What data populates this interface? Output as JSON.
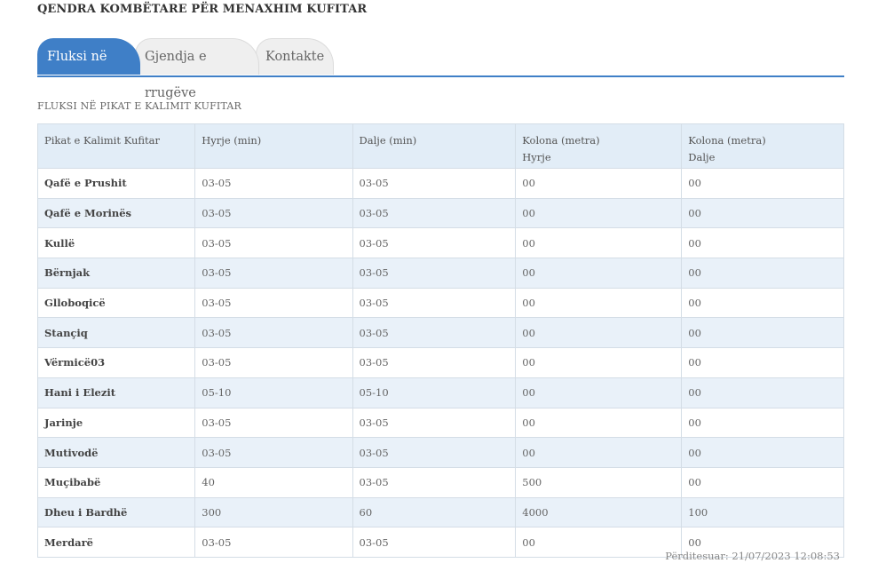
{
  "site_title": "QENDRA KOMBËTARE PËR MENAXHIM KUFITAR",
  "tabs": [
    {
      "label": "Fluksi në kufi",
      "active": true
    },
    {
      "label": "Gjendja e rrugëve",
      "active": false
    },
    {
      "label": "Kontakte",
      "active": false
    }
  ],
  "section_title": "FLUKSI NË PIKAT E KALIMIT KUFITAR",
  "table": {
    "headers": [
      {
        "line1": "Pikat e Kalimit Kufitar",
        "line2": ""
      },
      {
        "line1": "Hyrje (min)",
        "line2": ""
      },
      {
        "line1": "Dalje (min)",
        "line2": ""
      },
      {
        "line1": "Kolona (metra)",
        "line2": "Hyrje"
      },
      {
        "line1": "Kolona (metra)",
        "line2": "Dalje"
      }
    ],
    "rows": [
      [
        "Qafë e Prushit",
        "03-05",
        "03-05",
        "00",
        "00"
      ],
      [
        "Qafë e Morinës",
        "03-05",
        "03-05",
        "00",
        "00"
      ],
      [
        "Kullë",
        "03-05",
        "03-05",
        "00",
        "00"
      ],
      [
        "Bërnjak",
        "03-05",
        "03-05",
        "00",
        "00"
      ],
      [
        "Glloboqicë",
        "03-05",
        "03-05",
        "00",
        "00"
      ],
      [
        "Stançiq",
        "03-05",
        "03-05",
        "00",
        "00"
      ],
      [
        "Vërmicë03",
        "03-05",
        "03-05",
        "00",
        "00"
      ],
      [
        "Hani i Elezit",
        "05-10",
        "05-10",
        "00",
        "00"
      ],
      [
        "Jarinje",
        "03-05",
        "03-05",
        "00",
        "00"
      ],
      [
        "Mutivodë",
        "03-05",
        "03-05",
        "00",
        "00"
      ],
      [
        "Muçibabë",
        "40",
        "03-05",
        "500",
        "00"
      ],
      [
        "Dheu i Bardhë",
        "300",
        "60",
        "4000",
        "100"
      ],
      [
        "Merdarë",
        "03-05",
        "03-05",
        "00",
        "00"
      ]
    ]
  },
  "updated": "Përditesuar: 21/07/2023 12:08:53",
  "colors": {
    "accent": "#3f7fc7",
    "header_bg": "#e2edf7",
    "row_alt_bg": "#e9f1f9"
  }
}
